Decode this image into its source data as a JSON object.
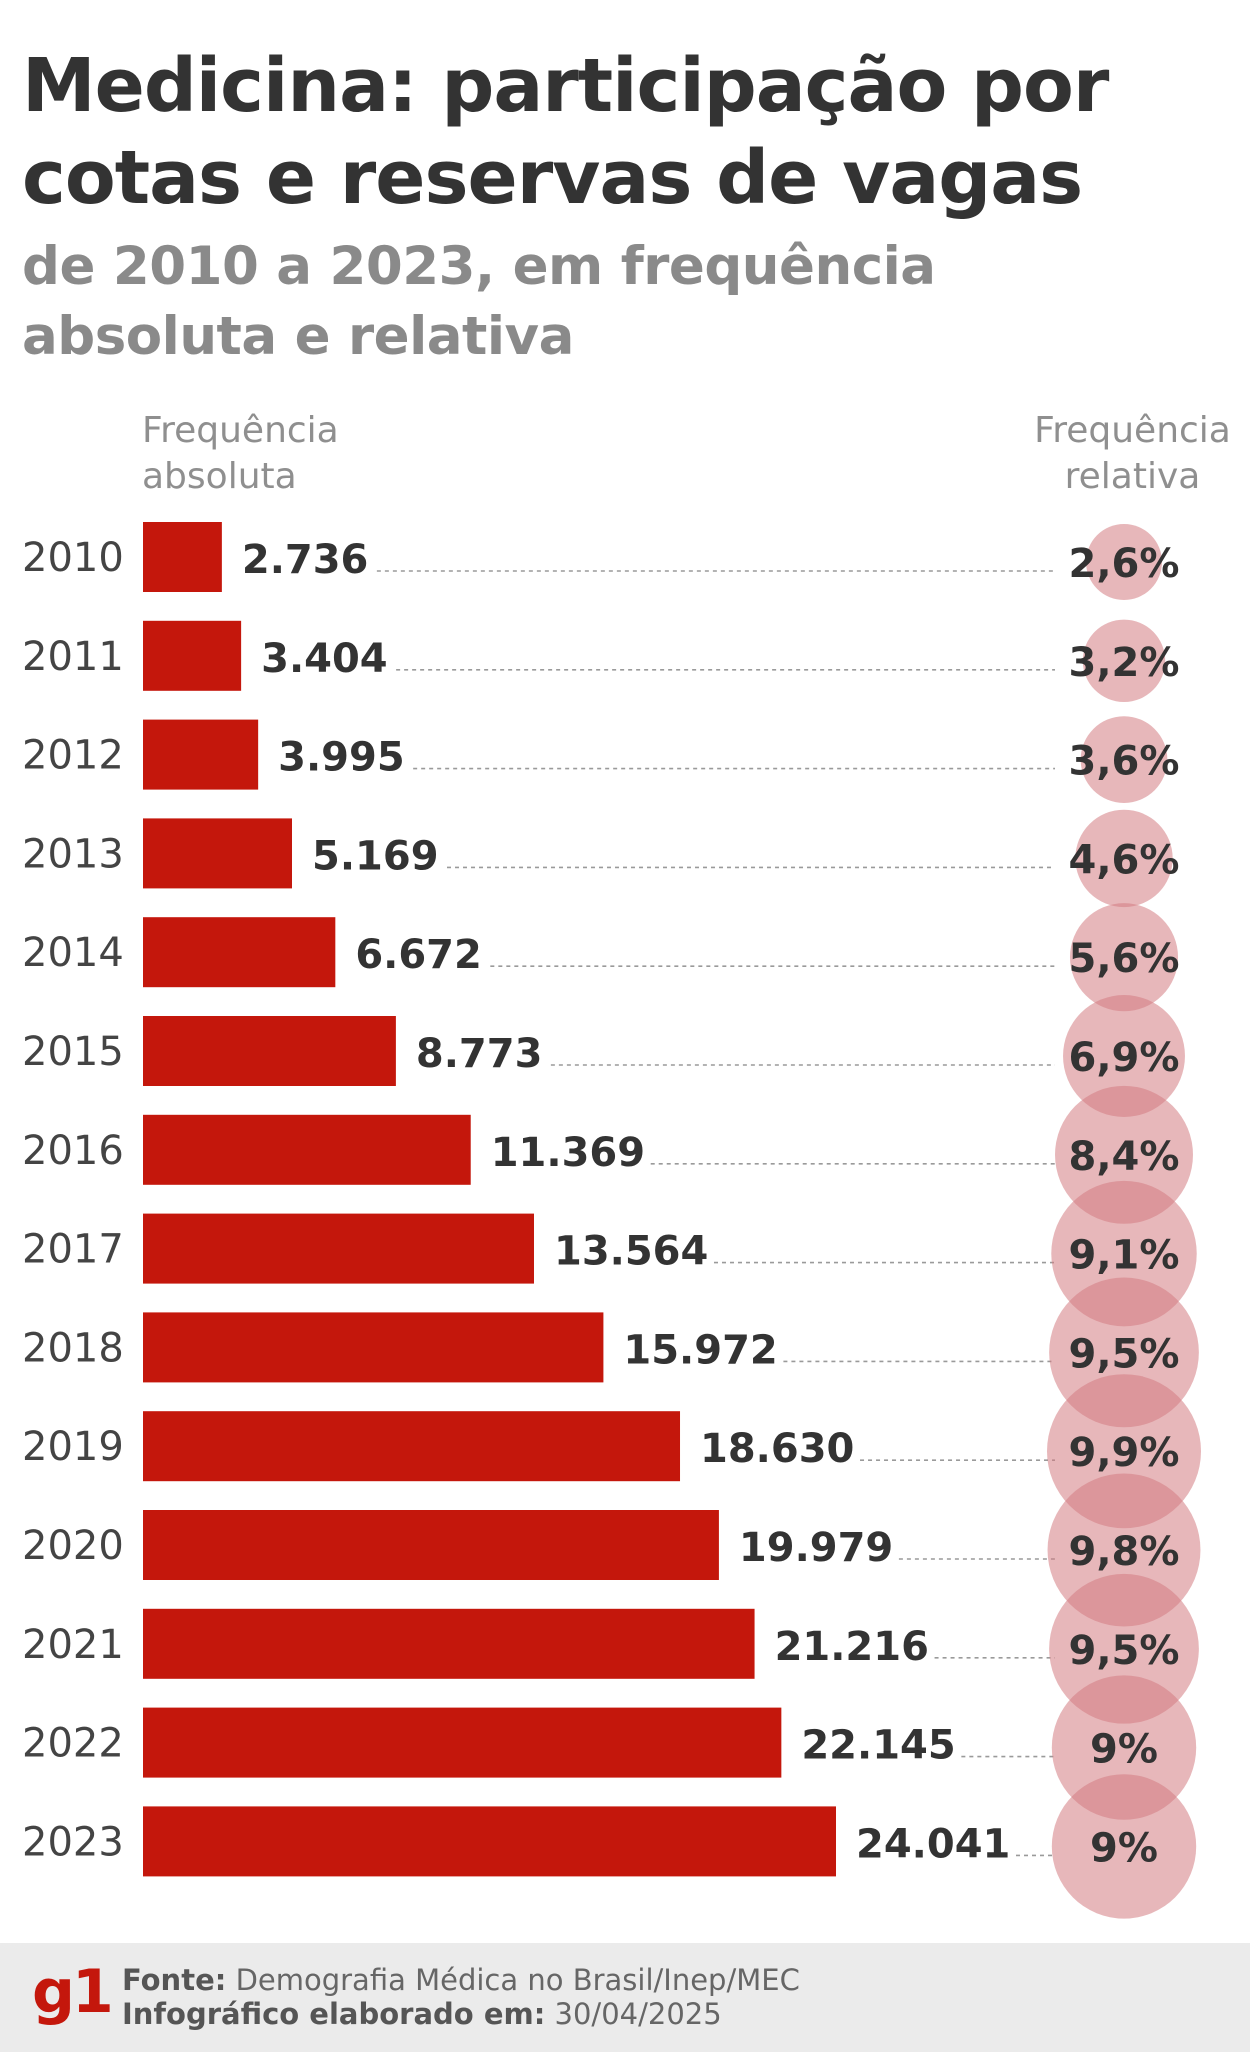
{
  "title": "Medicina: participação por cotas e reservas de vagas",
  "subtitle": "de 2010 a 2023, em frequência absoluta e relativa",
  "columns": {
    "absolute": "Frequência absoluta",
    "relative": "Frequência relativa"
  },
  "colors": {
    "bar": "#c4170c",
    "bubble": "#d47b81",
    "title": "#333333",
    "subtitle": "#8a8a8a"
  },
  "chart_data": {
    "type": "bar",
    "orientation": "horizontal",
    "categories": [
      "2010",
      "2011",
      "2012",
      "2013",
      "2014",
      "2015",
      "2016",
      "2017",
      "2018",
      "2019",
      "2020",
      "2021",
      "2022",
      "2023"
    ],
    "values": [
      2736,
      3404,
      3995,
      5169,
      6672,
      8773,
      11369,
      13564,
      15972,
      18630,
      19979,
      21216,
      22145,
      24041
    ],
    "value_labels": [
      "2.736",
      "3.404",
      "3.995",
      "5.169",
      "6.672",
      "8.773",
      "11.369",
      "13.564",
      "15.972",
      "18.630",
      "19.979",
      "21.216",
      "22.145",
      "24.041"
    ],
    "relative_values": [
      2.6,
      3.2,
      3.6,
      4.6,
      5.6,
      6.9,
      8.4,
      9.1,
      9.5,
      9.9,
      9.8,
      9.5,
      9.0,
      9.0
    ],
    "relative_labels": [
      "2,6%",
      "3,2%",
      "3,6%",
      "4,6%",
      "5,6%",
      "6,9%",
      "8,4%",
      "9,1%",
      "9,5%",
      "9,9%",
      "9,8%",
      "9,5%",
      "9%",
      "9%"
    ],
    "xlim": [
      0,
      24041
    ],
    "title": "Medicina: participação por cotas e reservas de vagas",
    "xlabel": "Frequência absoluta",
    "ylabel": ""
  },
  "footer": {
    "logo": "g1",
    "source_label": "Fonte:",
    "source_value": "Demografia Médica no Brasil/Inep/MEC",
    "date_label": "Infográfico elaborado em:",
    "date_value": "30/04/2025"
  }
}
